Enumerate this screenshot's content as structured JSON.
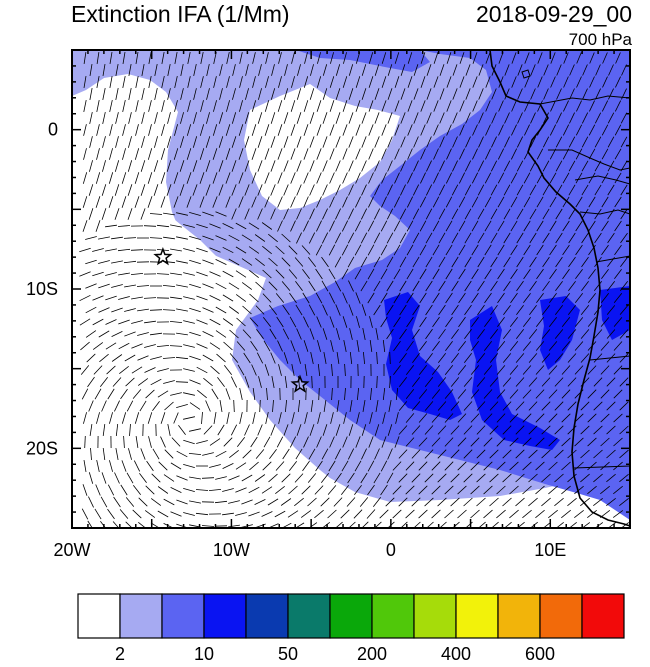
{
  "title_left": "Extinction IFA (1/Mm)",
  "title_right": "2018-09-29_00",
  "level": "700 hPa",
  "lat_ticks": [
    {
      "lat": 0,
      "label": "0"
    },
    {
      "lat": -10,
      "label": "10S"
    },
    {
      "lat": -20,
      "label": "20S"
    }
  ],
  "lon_ticks": [
    {
      "lon": -20,
      "label": "20W"
    },
    {
      "lon": -10,
      "label": "10W"
    },
    {
      "lon": 0,
      "label": "0"
    },
    {
      "lon": 10,
      "label": "10E"
    }
  ],
  "extent": {
    "lon_min": -20,
    "lon_max": 15,
    "lat_min": -25,
    "lat_max": 5
  },
  "colorbar": {
    "colors": [
      "#ffffff",
      "#a6aaf2",
      "#5b64f2",
      "#0a14f2",
      "#0a3ab0",
      "#0a7a6a",
      "#0aa80a",
      "#50c80a",
      "#a6dc0a",
      "#f2f20a",
      "#f2b40a",
      "#f26a0a",
      "#f20a0a"
    ],
    "labels": [
      {
        "after_box": 1,
        "text": "2"
      },
      {
        "after_box": 3,
        "text": "10"
      },
      {
        "after_box": 5,
        "text": "50"
      },
      {
        "after_box": 7,
        "text": "200"
      },
      {
        "after_box": 9,
        "text": "400"
      },
      {
        "after_box": 11,
        "text": "600"
      }
    ]
  },
  "markers": [
    {
      "name": "station-star-1",
      "lon": -14.3,
      "lat": -8.0
    },
    {
      "name": "station-star-2",
      "lon": -5.7,
      "lat": -16.0
    }
  ]
}
